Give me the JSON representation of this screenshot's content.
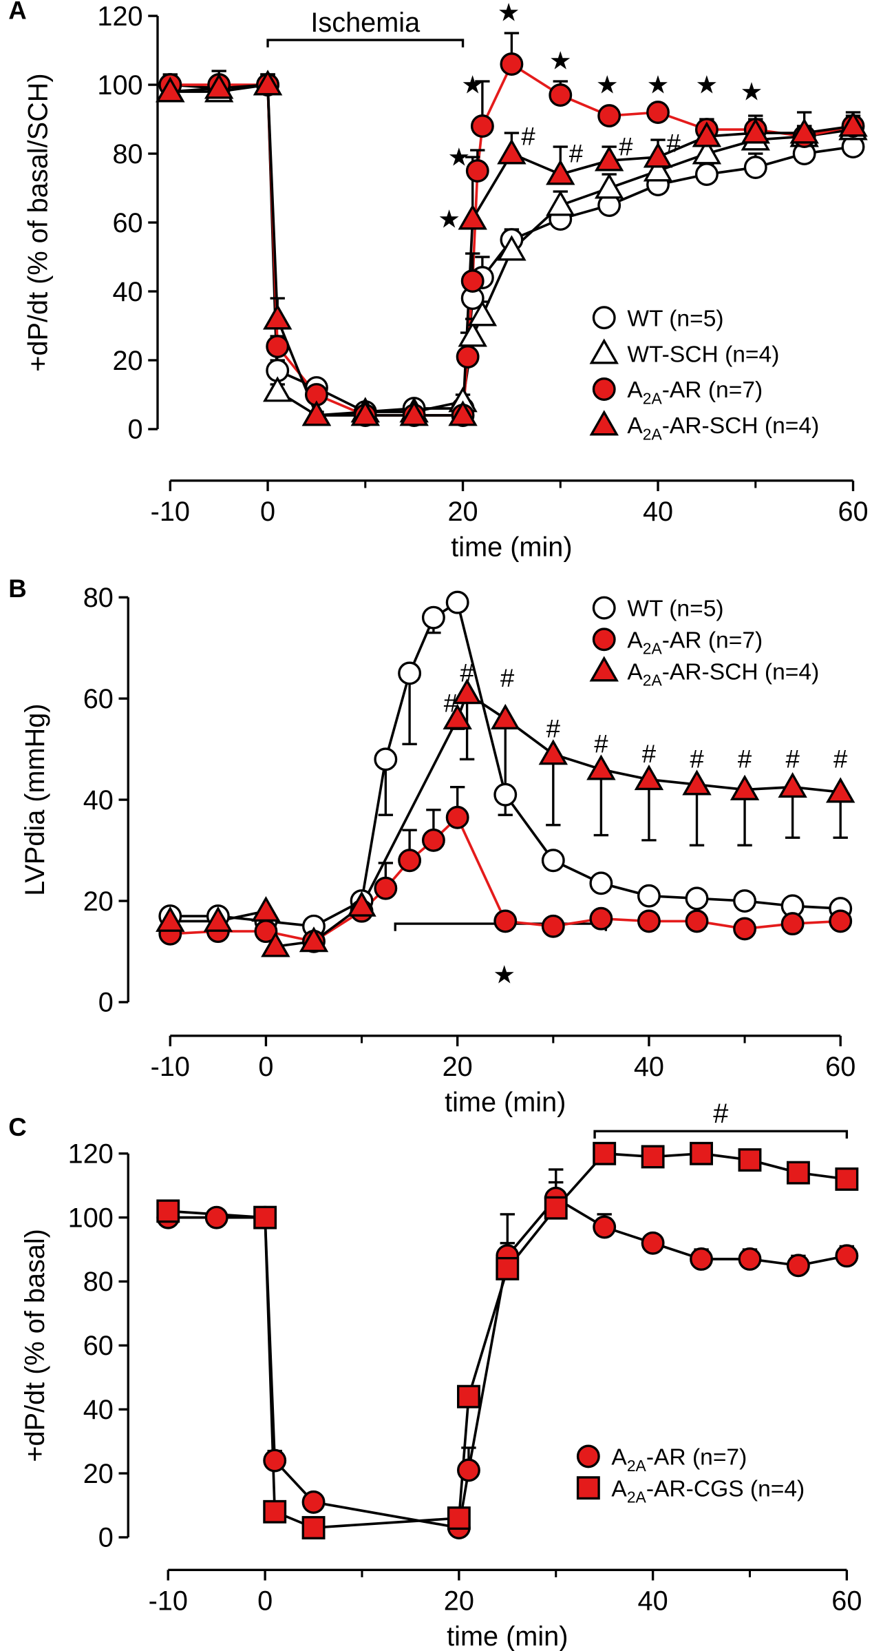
{
  "chart_data": [
    {
      "type": "line",
      "panel": "A",
      "ylabel": "+dP/dt (% of basal/SCH)",
      "xlabel": "time (min)",
      "xlim": [
        -10,
        60
      ],
      "xticks": [
        -10,
        0,
        20,
        40,
        60
      ],
      "xminorticks": [
        10,
        30,
        50
      ],
      "ylim": [
        0,
        120
      ],
      "yticks": [
        0,
        20,
        40,
        60,
        80,
        100,
        120
      ],
      "legend": "lower right",
      "series": [
        {
          "name": "WT (n=5)",
          "marker": "circle",
          "color": "#ffffff",
          "line_color": "#000000",
          "error_direction": "up",
          "x": [
            -10,
            -5,
            0,
            1,
            5,
            10,
            15,
            20,
            21,
            22,
            25,
            30,
            35,
            40,
            45,
            50,
            55,
            60
          ],
          "values": [
            100,
            99,
            100,
            17,
            12,
            5,
            6,
            6,
            38,
            44,
            55,
            61,
            65,
            71,
            74,
            76,
            80,
            82
          ],
          "errors": [
            3,
            3,
            3,
            3,
            2,
            1,
            1,
            2,
            5,
            6,
            3,
            4,
            5,
            4,
            3,
            4,
            3,
            3
          ]
        },
        {
          "name": "WT-SCH (n=4)",
          "marker": "triangle",
          "color": "#ffffff",
          "line_color": "#000000",
          "error_direction": "up",
          "x": [
            -10,
            -5,
            0,
            1,
            5,
            10,
            15,
            20,
            21,
            22,
            25,
            30,
            35,
            40,
            45,
            50,
            55,
            60
          ],
          "values": [
            98,
            98,
            100,
            11,
            4,
            5,
            5,
            8,
            27,
            33,
            52,
            65,
            70,
            75,
            80,
            84,
            85,
            87
          ],
          "errors": [
            2,
            4,
            3,
            2,
            1,
            1,
            1,
            2,
            5,
            4,
            4,
            4,
            4,
            4,
            3,
            3,
            3,
            3
          ]
        },
        {
          "name": "A2A-AR (n=7)",
          "marker": "circle",
          "color": "#e41b1b",
          "line_color": "#e41b1b",
          "error_direction": "up",
          "x": [
            -10,
            -5,
            0,
            1,
            5,
            10,
            15,
            20,
            20.5,
            21,
            21.5,
            22,
            25,
            30,
            35,
            40,
            45,
            50,
            55,
            60
          ],
          "values": [
            100,
            100,
            100,
            24,
            10,
            4,
            4,
            4,
            21,
            43,
            75,
            88,
            106,
            97,
            91,
            92,
            87,
            87,
            85,
            88
          ],
          "errors": [
            2,
            2,
            2,
            3,
            2,
            1,
            1,
            1,
            7,
            8,
            6,
            13,
            9,
            4,
            2,
            2,
            3,
            3,
            3,
            3
          ]
        },
        {
          "name": "A2A-AR-SCH (n=4)",
          "marker": "triangle",
          "color": "#e41b1b",
          "line_color": "#000000",
          "error_direction": "up",
          "x": [
            -10,
            -5,
            0,
            1,
            5,
            10,
            15,
            20,
            21,
            25,
            30,
            35,
            40,
            45,
            50,
            55,
            60
          ],
          "values": [
            98,
            99,
            100,
            32,
            4,
            4,
            4,
            4,
            61,
            80,
            74,
            78,
            79,
            85,
            86,
            86,
            88
          ],
          "errors": [
            2,
            5,
            3,
            6,
            1,
            1,
            1,
            1,
            18,
            6,
            8,
            4,
            5,
            3,
            5,
            6,
            4
          ]
        }
      ],
      "brackets": [
        {
          "x": [
            0,
            20
          ],
          "y": 113,
          "label": "Ischemia"
        }
      ],
      "annotations": [
        {
          "text": "★",
          "x": 18.6,
          "y": 61
        },
        {
          "text": "★",
          "x": 19.6,
          "y": 79
        },
        {
          "text": "★",
          "x": 21,
          "y": 100
        },
        {
          "text": "★",
          "x": 24.7,
          "y": 121
        },
        {
          "text": "★",
          "x": 30,
          "y": 107
        },
        {
          "text": "★",
          "x": 34.8,
          "y": 100
        },
        {
          "text": "★",
          "x": 40,
          "y": 100
        },
        {
          "text": "★",
          "x": 45,
          "y": 100
        },
        {
          "text": "★",
          "x": 49.6,
          "y": 98
        },
        {
          "text": "#",
          "x": 26.7,
          "y": 85
        },
        {
          "text": "#",
          "x": 31.6,
          "y": 80
        },
        {
          "text": "#",
          "x": 36.7,
          "y": 82
        },
        {
          "text": "#",
          "x": 41.6,
          "y": 83
        }
      ]
    },
    {
      "type": "line",
      "panel": "B",
      "ylabel": "LVPdia (mmHg)",
      "xlabel": "time (min)",
      "xlim": [
        -10,
        60
      ],
      "xticks": [
        -10,
        0,
        20,
        40,
        60
      ],
      "xminorticks": [
        10,
        30,
        50
      ],
      "ylim": [
        0,
        80
      ],
      "yticks": [
        0,
        20,
        40,
        60,
        80
      ],
      "legend": "upper right",
      "series": [
        {
          "name": "WT (n=5)",
          "marker": "circle",
          "color": "#ffffff",
          "line_color": "#000000",
          "error_direction": "down",
          "x": [
            -10,
            -5,
            0,
            5,
            10,
            12.5,
            15,
            17.5,
            20,
            25,
            30,
            35,
            40,
            45,
            50,
            55,
            60
          ],
          "values": [
            17,
            17,
            16,
            15,
            20,
            48,
            65,
            76,
            79,
            41,
            28,
            23.5,
            21,
            20.5,
            20,
            19,
            18.5
          ],
          "errors": [
            1,
            1,
            1,
            1,
            2,
            11,
            14,
            3,
            1,
            4,
            1,
            1,
            1,
            1,
            1,
            1,
            1
          ]
        },
        {
          "name": "A2A-AR (n=7)",
          "marker": "circle",
          "color": "#e41b1b",
          "line_color": "#e41b1b",
          "error_direction": "up",
          "x": [
            -10,
            -5,
            0,
            5,
            10,
            12.5,
            15,
            17.5,
            20,
            25,
            30,
            35,
            40,
            45,
            50,
            55,
            60
          ],
          "values": [
            13.5,
            14,
            14,
            12,
            18,
            22.5,
            28,
            32,
            36.5,
            16,
            15,
            16.5,
            16,
            16,
            14.5,
            15.5,
            16
          ],
          "errors": [
            1,
            1,
            1,
            1,
            2,
            5,
            6,
            6,
            6,
            1,
            1,
            1,
            1,
            1,
            1,
            1,
            1
          ]
        },
        {
          "name": "A2A-AR-SCH (n=4)",
          "marker": "triangle",
          "color": "#e41b1b",
          "line_color": "#000000",
          "error_direction": "down",
          "x": [
            -10,
            -5,
            0,
            1,
            5,
            10,
            20,
            21,
            25,
            30,
            35,
            40,
            45,
            50,
            55,
            60
          ],
          "values": [
            16,
            16,
            18,
            11,
            12,
            19,
            56,
            61,
            56,
            49,
            46,
            44,
            43,
            42,
            42.5,
            41.5
          ],
          "errors": [
            1,
            1,
            1,
            1,
            1,
            2,
            2,
            13,
            15,
            14,
            13,
            12,
            12,
            11,
            10,
            9
          ]
        }
      ],
      "brackets": [
        {
          "x": [
            13.5,
            35.5
          ],
          "y": 15.5
        }
      ],
      "annotations": [
        {
          "text": "★",
          "x": 24.9,
          "y": 5.4
        },
        {
          "text": "#",
          "x": 19.3,
          "y": 59
        },
        {
          "text": "#",
          "x": 21,
          "y": 65
        },
        {
          "text": "#",
          "x": 25.2,
          "y": 64
        },
        {
          "text": "#",
          "x": 30,
          "y": 54
        },
        {
          "text": "#",
          "x": 35,
          "y": 51
        },
        {
          "text": "#",
          "x": 40,
          "y": 49
        },
        {
          "text": "#",
          "x": 45,
          "y": 48
        },
        {
          "text": "#",
          "x": 50,
          "y": 48
        },
        {
          "text": "#",
          "x": 55,
          "y": 48
        },
        {
          "text": "#",
          "x": 60,
          "y": 48
        }
      ]
    },
    {
      "type": "line",
      "panel": "C",
      "ylabel": "+dP/dt (% of basal)",
      "xlabel": "time (min)",
      "xlim": [
        -10,
        60
      ],
      "xticks": [
        -10,
        0,
        20,
        40,
        60
      ],
      "xminorticks": [
        10,
        30,
        50
      ],
      "ylim": [
        0,
        120
      ],
      "yticks": [
        0,
        20,
        40,
        60,
        80,
        100,
        120
      ],
      "legend": "lower right",
      "series": [
        {
          "name": "A2A-AR (n=7)",
          "marker": "circle",
          "color": "#e41b1b",
          "line_color": "#000000",
          "error_direction": "up",
          "x": [
            -10,
            -5,
            0,
            1,
            5,
            20,
            21,
            25,
            30,
            35,
            40,
            45,
            50,
            55,
            60
          ],
          "values": [
            100,
            100,
            100,
            24,
            11,
            3,
            21,
            88,
            106,
            97,
            92,
            87,
            87,
            85,
            88
          ],
          "errors": [
            2,
            2,
            2,
            3,
            2,
            1,
            7,
            13,
            9,
            4,
            2,
            3,
            3,
            3,
            3
          ]
        },
        {
          "name": "A2A-AR-CGS (n=4)",
          "marker": "square",
          "color": "#e41b1b",
          "line_color": "#000000",
          "error_direction": "up",
          "x": [
            -10,
            0,
            1,
            5,
            20,
            21,
            25,
            30,
            35,
            40,
            45,
            50,
            55,
            60
          ],
          "values": [
            102,
            100,
            8,
            3,
            6,
            44,
            84,
            103,
            120,
            119,
            120,
            118,
            114,
            112
          ],
          "errors": [
            3,
            2,
            1,
            1,
            1,
            3,
            8,
            8,
            2,
            2,
            2,
            3,
            3,
            2
          ]
        }
      ],
      "brackets": [
        {
          "x": [
            34,
            60
          ],
          "y": 127,
          "label": "#"
        }
      ],
      "annotations": []
    }
  ]
}
